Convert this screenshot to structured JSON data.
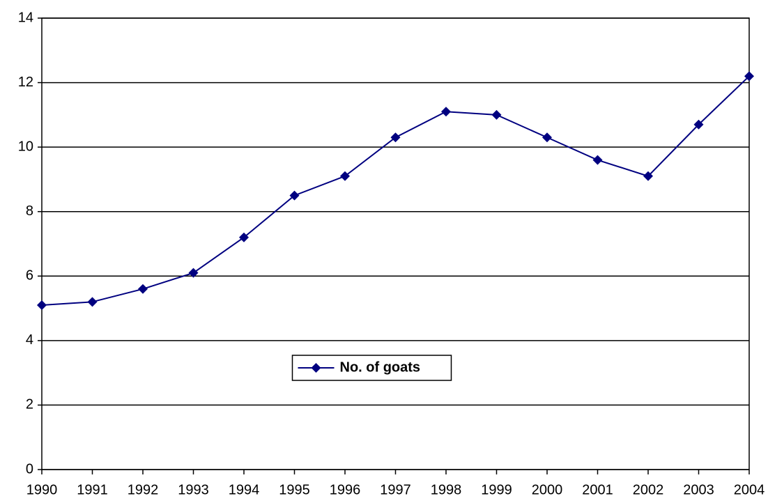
{
  "chart_data": {
    "type": "line",
    "x": [
      1990,
      1991,
      1992,
      1993,
      1994,
      1995,
      1996,
      1997,
      1998,
      1999,
      2000,
      2001,
      2002,
      2003,
      2004
    ],
    "series": [
      {
        "name": "No. of goats",
        "color": "#000080",
        "values": [
          5.1,
          5.2,
          5.6,
          6.1,
          7.2,
          8.5,
          9.1,
          10.3,
          11.1,
          11.0,
          10.3,
          9.6,
          9.1,
          10.7,
          12.2
        ]
      }
    ],
    "xlim": [
      1990,
      2004
    ],
    "xticks": [
      1990,
      1991,
      1992,
      1993,
      1994,
      1995,
      1996,
      1997,
      1998,
      1999,
      2000,
      2001,
      2002,
      2003,
      2004
    ],
    "ylim": [
      0,
      14
    ],
    "yticks": [
      0,
      2,
      4,
      6,
      8,
      10,
      12,
      14
    ],
    "grid": true,
    "legend": "center"
  }
}
